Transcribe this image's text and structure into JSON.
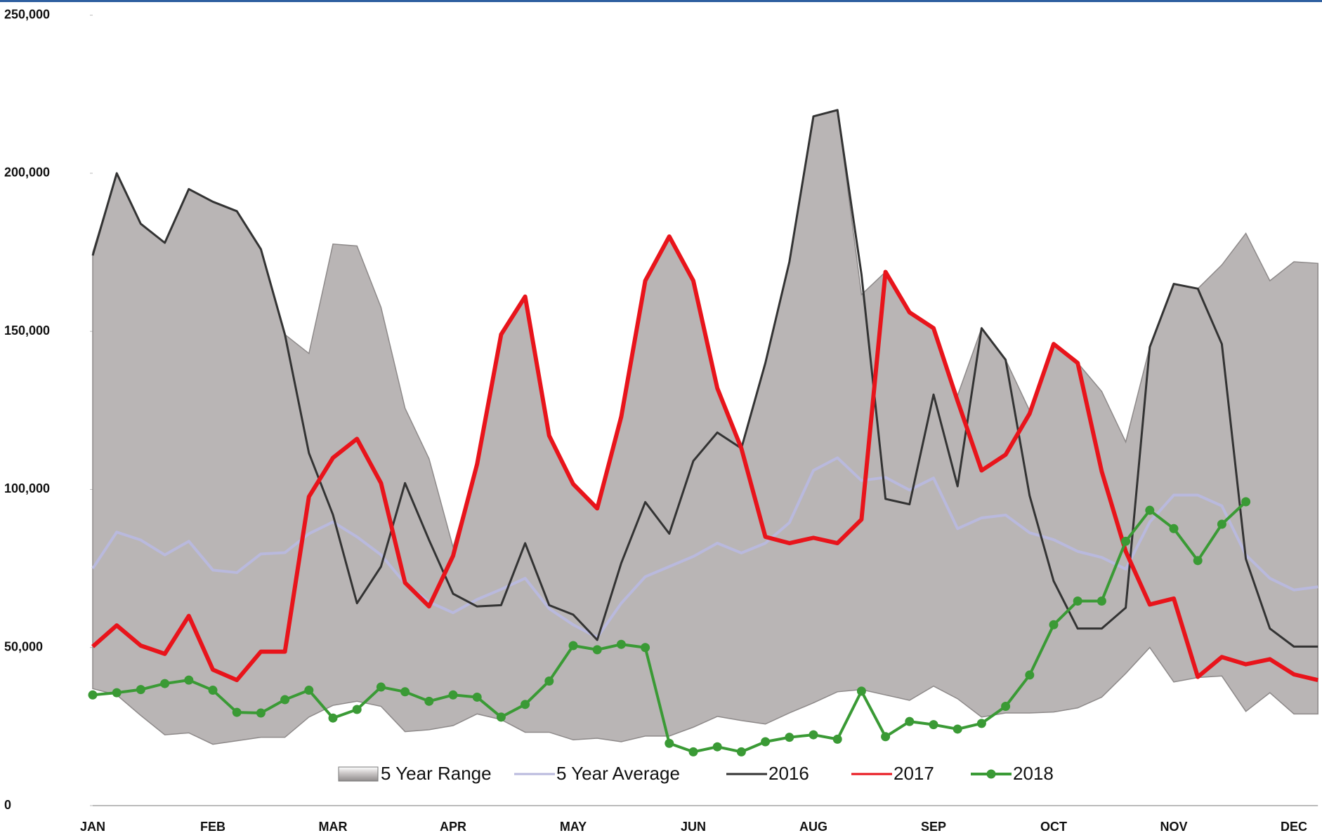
{
  "chart_data": {
    "type": "line",
    "categories": [
      "JAN",
      null,
      null,
      null,
      null,
      "FEB",
      null,
      null,
      null,
      null,
      "MAR",
      null,
      null,
      null,
      null,
      "APR",
      null,
      null,
      null,
      null,
      "MAY",
      null,
      null,
      null,
      null,
      "JUN",
      null,
      null,
      null,
      null,
      "AUG",
      null,
      null,
      null,
      null,
      "SEP",
      null,
      null,
      null,
      null,
      "OCT",
      null,
      null,
      null,
      null,
      "NOV",
      null,
      null,
      null,
      null,
      "DEC",
      null
    ],
    "ylim": [
      0,
      250000
    ],
    "yticks": [
      0,
      {
        "value": 50000,
        "label": "50,000"
      },
      {
        "value": 100000,
        "label": "100,000"
      },
      {
        "value": 150000,
        "label": "150,000"
      },
      {
        "value": 200000,
        "label": "200,000"
      },
      {
        "value": 250000,
        "label": "250,000"
      }
    ],
    "grid": false,
    "legend": "bottom",
    "series": [
      {
        "name": "5 Year Range",
        "color": "#b9b5b5",
        "low": [
          37000,
          35000,
          28500,
          22400,
          23000,
          19400,
          20500,
          21600,
          21600,
          28000,
          31700,
          33000,
          31400,
          23400,
          24000,
          25300,
          29000,
          27200,
          23200,
          23200,
          20800,
          21300,
          20200,
          22000,
          22000,
          24800,
          28200,
          26900,
          25800,
          29300,
          32500,
          36000,
          36700,
          35000,
          33300,
          37800,
          33800,
          28000,
          29300,
          29300,
          29600,
          30900,
          34300,
          41800,
          50000,
          39100,
          40500,
          41000,
          29800,
          35700,
          29000,
          29000
        ],
        "high": [
          175000,
          200000,
          184000,
          178000,
          195000,
          191000,
          188000,
          176000,
          149000,
          143000,
          177600,
          177000,
          157600,
          125700,
          109700,
          81700,
          108400,
          149000,
          161000,
          117000,
          101700,
          94000,
          123000,
          166000,
          180000,
          166000,
          132000,
          113000,
          140000,
          172000,
          218000,
          220000,
          161600,
          168800,
          156000,
          151000,
          129700,
          151000,
          141000,
          124900,
          146000,
          140000,
          131000,
          115000,
          145000,
          165000,
          163500,
          171000,
          181000,
          166000,
          172000,
          171500
        ]
      },
      {
        "name": "5 Year Average",
        "color": "#b9b9dd",
        "values": [
          75000,
          86500,
          84000,
          79300,
          83600,
          74500,
          73700,
          79600,
          80000,
          86000,
          89700,
          85000,
          79300,
          70300,
          64400,
          61000,
          65200,
          68400,
          71900,
          62300,
          57200,
          53200,
          64000,
          72400,
          75600,
          78800,
          83000,
          79900,
          83000,
          89500,
          106000,
          110000,
          102800,
          103800,
          99800,
          103600,
          87600,
          91000,
          91900,
          86300,
          84100,
          80400,
          78500,
          74800,
          89700,
          98200,
          98200,
          94800,
          79300,
          71900,
          68200,
          69200
        ]
      },
      {
        "name": "2016",
        "color": "#333333",
        "values": [
          174000,
          200000,
          184000,
          178000,
          195000,
          191000,
          188000,
          176000,
          149000,
          111500,
          92000,
          64000,
          75600,
          102000,
          84000,
          67000,
          63000,
          63400,
          83000,
          63400,
          60400,
          52400,
          76700,
          96000,
          86000,
          109000,
          118000,
          113000,
          140000,
          172000,
          218000,
          220000,
          168000,
          97000,
          95300,
          130000,
          101000,
          151000,
          141000,
          98000,
          71000,
          56000,
          56000,
          62600,
          145000,
          165000,
          163500,
          146000,
          78000,
          56000,
          50300,
          50300
        ]
      },
      {
        "name": "2017",
        "color": "#e8141b",
        "values": [
          50300,
          57000,
          50600,
          48000,
          60000,
          43000,
          39700,
          48700,
          48700,
          97700,
          110000,
          116000,
          102000,
          70500,
          63000,
          79000,
          108000,
          149000,
          161000,
          117000,
          101700,
          94000,
          123000,
          166000,
          180000,
          166000,
          132000,
          113000,
          85000,
          83000,
          84700,
          83000,
          90500,
          168800,
          156000,
          151000,
          128000,
          106000,
          111000,
          124000,
          146000,
          140000,
          105700,
          80400,
          63600,
          65500,
          40700,
          47000,
          44700,
          46300,
          41500,
          39700
        ]
      },
      {
        "name": "2018",
        "color": "#3a9a35",
        "markers": true,
        "values": [
          35000,
          35700,
          36700,
          38600,
          39700,
          36500,
          29500,
          29300,
          33500,
          36500,
          27700,
          30400,
          37500,
          36000,
          33000,
          35000,
          34300,
          28000,
          32000,
          39400,
          50600,
          49300,
          51000,
          50000,
          19700,
          17000,
          18600,
          17000,
          20200,
          21600,
          22400,
          21000,
          36200,
          21800,
          26600,
          25600,
          24200,
          26000,
          31400,
          41300,
          57200,
          64700,
          64700,
          83600,
          93400,
          87600,
          77500,
          89000,
          96100,
          null,
          null,
          null
        ]
      }
    ]
  }
}
